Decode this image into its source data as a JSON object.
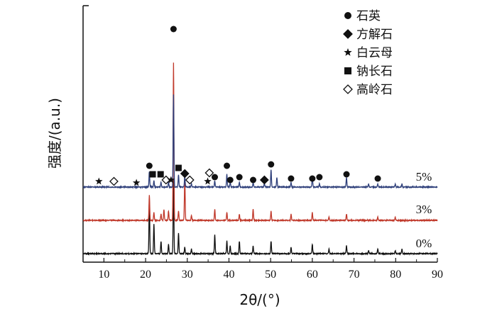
{
  "chart_data": {
    "type": "line",
    "xlabel": "2θ/(°)",
    "ylabel": "强度/(a.u.)",
    "xlim": [
      5,
      90
    ],
    "x_ticks": [
      "10",
      "20",
      "30",
      "40",
      "50",
      "60",
      "70",
      "80",
      "90"
    ],
    "legend": [
      {
        "marker": "circle",
        "label": "石英"
      },
      {
        "marker": "diamond",
        "label": "方解石"
      },
      {
        "marker": "star",
        "label": "白云母"
      },
      {
        "marker": "square",
        "label": "钠长石"
      },
      {
        "marker": "diamond-open",
        "label": "高岭石"
      }
    ],
    "series": [
      {
        "name": "0%",
        "color": "#111111",
        "peaks": [
          {
            "x": 20.9,
            "h": 0.35
          },
          {
            "x": 22.0,
            "h": 0.19
          },
          {
            "x": 23.7,
            "h": 0.08
          },
          {
            "x": 25.5,
            "h": 0.06
          },
          {
            "x": 26.7,
            "h": 0.47
          },
          {
            "x": 27.9,
            "h": 0.13
          },
          {
            "x": 29.4,
            "h": 0.04
          },
          {
            "x": 31.0,
            "h": 0.03
          },
          {
            "x": 36.6,
            "h": 0.12
          },
          {
            "x": 39.5,
            "h": 0.08
          },
          {
            "x": 40.3,
            "h": 0.05
          },
          {
            "x": 42.5,
            "h": 0.08
          },
          {
            "x": 45.8,
            "h": 0.05
          },
          {
            "x": 50.1,
            "h": 0.08
          },
          {
            "x": 54.9,
            "h": 0.04
          },
          {
            "x": 60.0,
            "h": 0.06
          },
          {
            "x": 64.0,
            "h": 0.03
          },
          {
            "x": 68.2,
            "h": 0.05
          },
          {
            "x": 73.5,
            "h": 0.02
          },
          {
            "x": 75.7,
            "h": 0.03
          },
          {
            "x": 79.9,
            "h": 0.02
          },
          {
            "x": 81.5,
            "h": 0.03
          }
        ]
      },
      {
        "name": "3%",
        "color": "#c0392b",
        "peaks": [
          {
            "x": 20.9,
            "h": 0.16
          },
          {
            "x": 22.0,
            "h": 0.05
          },
          {
            "x": 23.7,
            "h": 0.04
          },
          {
            "x": 24.4,
            "h": 0.07
          },
          {
            "x": 25.5,
            "h": 0.06
          },
          {
            "x": 26.7,
            "h": 1.0
          },
          {
            "x": 27.9,
            "h": 0.06
          },
          {
            "x": 29.4,
            "h": 0.28
          },
          {
            "x": 31.0,
            "h": 0.03
          },
          {
            "x": 36.6,
            "h": 0.07
          },
          {
            "x": 39.5,
            "h": 0.05
          },
          {
            "x": 42.5,
            "h": 0.04
          },
          {
            "x": 45.8,
            "h": 0.07
          },
          {
            "x": 50.1,
            "h": 0.06
          },
          {
            "x": 54.9,
            "h": 0.04
          },
          {
            "x": 60.0,
            "h": 0.05
          },
          {
            "x": 64.0,
            "h": 0.02
          },
          {
            "x": 68.2,
            "h": 0.04
          },
          {
            "x": 75.7,
            "h": 0.02
          },
          {
            "x": 79.9,
            "h": 0.02
          }
        ]
      },
      {
        "name": "5%",
        "color": "#2e3f7a",
        "peaks": [
          {
            "x": 20.9,
            "h": 0.1
          },
          {
            "x": 22.0,
            "h": 0.04
          },
          {
            "x": 23.7,
            "h": 0.03
          },
          {
            "x": 25.5,
            "h": 0.03
          },
          {
            "x": 26.7,
            "h": 0.59
          },
          {
            "x": 27.9,
            "h": 0.08
          },
          {
            "x": 29.4,
            "h": 0.07
          },
          {
            "x": 31.0,
            "h": 0.02
          },
          {
            "x": 36.6,
            "h": 0.04
          },
          {
            "x": 39.5,
            "h": 0.08
          },
          {
            "x": 40.3,
            "h": 0.03
          },
          {
            "x": 42.5,
            "h": 0.03
          },
          {
            "x": 45.8,
            "h": 0.03
          },
          {
            "x": 48.5,
            "h": 0.02
          },
          {
            "x": 50.1,
            "h": 0.11
          },
          {
            "x": 51.5,
            "h": 0.06
          },
          {
            "x": 54.9,
            "h": 0.03
          },
          {
            "x": 60.0,
            "h": 0.07
          },
          {
            "x": 61.7,
            "h": 0.02
          },
          {
            "x": 68.2,
            "h": 0.06
          },
          {
            "x": 73.5,
            "h": 0.02
          },
          {
            "x": 75.7,
            "h": 0.02
          },
          {
            "x": 79.9,
            "h": 0.02
          },
          {
            "x": 81.5,
            "h": 0.02
          }
        ]
      }
    ],
    "phase_markers": [
      {
        "marker": "star",
        "x": 8.8
      },
      {
        "marker": "diamond-open",
        "x": 12.4
      },
      {
        "marker": "star",
        "x": 17.8
      },
      {
        "marker": "circle",
        "x": 20.9
      },
      {
        "marker": "square",
        "x": 21.7
      },
      {
        "marker": "square",
        "x": 23.6
      },
      {
        "marker": "diamond-open",
        "x": 24.9
      },
      {
        "marker": "circle",
        "x": 26.7
      },
      {
        "marker": "star",
        "x": 26.1
      },
      {
        "marker": "square",
        "x": 27.9
      },
      {
        "marker": "diamond",
        "x": 29.4
      },
      {
        "marker": "diamond-open",
        "x": 30.6
      },
      {
        "marker": "star",
        "x": 34.9
      },
      {
        "marker": "diamond-open",
        "x": 35.3
      },
      {
        "marker": "circle",
        "x": 36.6
      },
      {
        "marker": "circle",
        "x": 39.5
      },
      {
        "marker": "circle",
        "x": 40.3
      },
      {
        "marker": "circle",
        "x": 42.5
      },
      {
        "marker": "circle",
        "x": 45.8
      },
      {
        "marker": "diamond",
        "x": 48.5
      },
      {
        "marker": "circle",
        "x": 50.1
      },
      {
        "marker": "circle",
        "x": 54.9
      },
      {
        "marker": "circle",
        "x": 60.0
      },
      {
        "marker": "circle",
        "x": 61.7
      },
      {
        "marker": "circle",
        "x": 68.2
      },
      {
        "marker": "circle",
        "x": 75.7
      }
    ]
  }
}
